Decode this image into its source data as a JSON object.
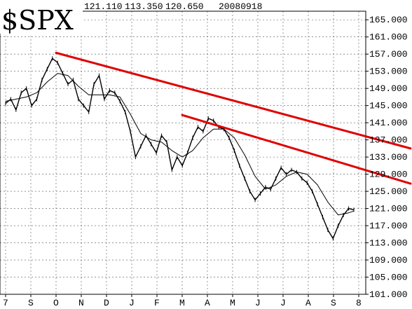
{
  "chart_data": {
    "type": "line",
    "title": "$SPX",
    "header_values": [
      "121.110",
      "113.350",
      "120.650",
      "20080918"
    ],
    "ylim": [
      101,
      167
    ],
    "yticks": [
      "165.000",
      "161.000",
      "157.000",
      "153.000",
      "149.000",
      "145.000",
      "141.000",
      "137.000",
      "133.000",
      "129.000",
      "125.000",
      "121.000",
      "117.000",
      "113.000",
      "109.000",
      "105.000",
      "101.000"
    ],
    "x_month_labels": [
      "7",
      "S",
      "O",
      "N",
      "D",
      "J",
      "F",
      "M",
      "A",
      "M",
      "J",
      "J",
      "A",
      "S",
      "8"
    ],
    "grid": true,
    "colors": {
      "price": "#000000",
      "moving_average": "#000000",
      "trendline": "#e00000"
    },
    "series": [
      {
        "kind": "close",
        "x": [
          0,
          1,
          2,
          3,
          4,
          5,
          6,
          7,
          8,
          9,
          10,
          11,
          12,
          13,
          14,
          15,
          16,
          17,
          18,
          19,
          20,
          21,
          22,
          23,
          24,
          25,
          26,
          27,
          28,
          29,
          30,
          31,
          32,
          33,
          34,
          35,
          36,
          37,
          38,
          39,
          40,
          41,
          42,
          43,
          44,
          45,
          46,
          47,
          48,
          49,
          50,
          51,
          52,
          53,
          54,
          55,
          56,
          57,
          58,
          59,
          60,
          61,
          62,
          63,
          64,
          65,
          66,
          67
        ],
        "values": [
          145.5,
          146.5,
          144.0,
          148.0,
          149.0,
          145.0,
          146.5,
          151.0,
          153.5,
          156.0,
          155.0,
          152.5,
          150.0,
          151.0,
          146.5,
          145.0,
          143.5,
          150.0,
          152.0,
          146.5,
          148.5,
          148.0,
          146.0,
          143.5,
          139.0,
          133.0,
          135.5,
          138.0,
          136.0,
          134.0,
          138.0,
          136.5,
          130.0,
          133.0,
          131.0,
          134.0,
          137.5,
          140.0,
          139.0,
          142.0,
          141.5,
          140.0,
          139.5,
          137.5,
          134.5,
          131.0,
          128.0,
          125.0,
          123.0,
          124.5,
          126.0,
          125.5,
          128.0,
          130.5,
          129.0,
          130.0,
          129.5,
          128.0,
          127.0,
          125.0,
          122.0,
          119.0,
          116.0,
          114.0,
          117.0,
          119.5,
          121.0,
          120.7
        ]
      },
      {
        "kind": "moving_average",
        "x": [
          0,
          2,
          4,
          6,
          8,
          10,
          12,
          14,
          16,
          18,
          20,
          22,
          24,
          26,
          28,
          30,
          32,
          34,
          36,
          38,
          40,
          42,
          44,
          46,
          48,
          50,
          52,
          54,
          56,
          58,
          60,
          62,
          64,
          66,
          67
        ],
        "values": [
          146.0,
          146.5,
          147.0,
          148.0,
          150.5,
          152.5,
          152.0,
          149.5,
          147.5,
          147.5,
          147.5,
          147.0,
          143.0,
          138.5,
          137.0,
          136.5,
          134.5,
          133.0,
          134.5,
          137.5,
          139.5,
          139.5,
          137.5,
          133.5,
          128.5,
          125.5,
          126.5,
          128.5,
          129.5,
          129.0,
          126.5,
          122.5,
          119.5,
          120.0,
          120.4
        ]
      }
    ],
    "trendlines": [
      {
        "from": [
          "O",
          157.3
        ],
        "to": [
          "S",
          135.0
        ]
      },
      {
        "from": [
          "M",
          142.8
        ],
        "to": [
          "S",
          126.8
        ]
      }
    ]
  }
}
